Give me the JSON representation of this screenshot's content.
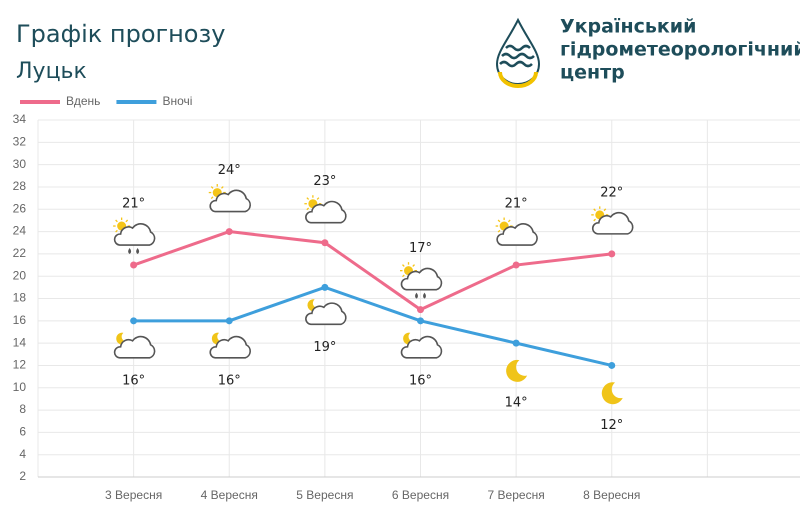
{
  "chart_data": {
    "type": "line",
    "title": "Графік прогнозу",
    "subtitle": "Луцьк",
    "logo": {
      "lines": [
        "Український",
        "гідрометеорологічний",
        "центр"
      ]
    },
    "categories": [
      "3 Вересня",
      "4 Вересня",
      "5 Вересня",
      "6 Вересня",
      "7 Вересня",
      "8 Вересня"
    ],
    "series": [
      {
        "name": "Вдень",
        "color": "#ee6b8b",
        "values": [
          21,
          24,
          23,
          17,
          21,
          22
        ],
        "value_labels": [
          "21°",
          "24°",
          "23°",
          "17°",
          "21°",
          "22°"
        ]
      },
      {
        "name": "Вночі",
        "color": "#3e9fdc",
        "values": [
          16,
          16,
          19,
          16,
          14,
          12
        ],
        "value_labels": [
          "16°",
          "16°",
          "19°",
          "16°",
          "14°",
          "12°"
        ]
      }
    ],
    "ylim": [
      2,
      34
    ],
    "yticks": [
      2,
      4,
      6,
      8,
      10,
      12,
      14,
      16,
      18,
      20,
      22,
      24,
      26,
      28,
      30,
      32,
      34
    ],
    "grid": true,
    "legend": "top-left"
  }
}
